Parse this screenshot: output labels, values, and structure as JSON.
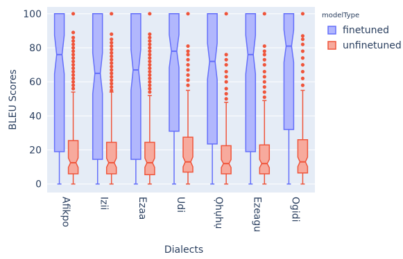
{
  "chart_data": {
    "type": "box",
    "notched": true,
    "xlabel": "Dialects",
    "ylabel": "BLEU Scores",
    "ylim": [
      -5,
      104
    ],
    "y_ticks": [
      0,
      20,
      40,
      60,
      80,
      100
    ],
    "grid": true,
    "legend": {
      "title": "modelType",
      "placement": "top-right"
    },
    "categories": [
      "Afikpo",
      "Izii",
      "Ezaa",
      "Udi",
      "Ọhụhụ",
      "Ezeagu",
      "Ogidi"
    ],
    "series": [
      {
        "name": "finetuned",
        "color": "#636efa",
        "boxes": [
          {
            "min": 0,
            "q1": 19,
            "median": 76,
            "q3": 100,
            "max": 100,
            "outliers": []
          },
          {
            "min": 0,
            "q1": 14.5,
            "median": 65,
            "q3": 100,
            "max": 100,
            "outliers": []
          },
          {
            "min": 0,
            "q1": 14.5,
            "median": 67,
            "q3": 100,
            "max": 100,
            "outliers": []
          },
          {
            "min": 0,
            "q1": 31,
            "median": 78,
            "q3": 100,
            "max": 100,
            "outliers": []
          },
          {
            "min": 0,
            "q1": 23.5,
            "median": 72,
            "q3": 100,
            "max": 100,
            "outliers": []
          },
          {
            "min": 0,
            "q1": 19,
            "median": 76,
            "q3": 100,
            "max": 100,
            "outliers": []
          },
          {
            "min": 0,
            "q1": 32,
            "median": 81,
            "q3": 100,
            "max": 100,
            "outliers": []
          }
        ]
      },
      {
        "name": "unfinetuned",
        "color": "#ef553b",
        "boxes": [
          {
            "min": 0,
            "q1": 6,
            "median": 12.5,
            "q3": 25.5,
            "max": 54,
            "outliers": [
              56,
              58,
              60,
              62,
              64,
              66,
              68,
              70,
              72,
              74,
              76,
              78,
              80,
              82,
              84,
              86,
              89,
              100
            ]
          },
          {
            "min": 0,
            "q1": 6,
            "median": 12.5,
            "q3": 24.5,
            "max": 54,
            "outliers": [
              55,
              57,
              59,
              61,
              63,
              65,
              67,
              69,
              71,
              73,
              75,
              77,
              79,
              81,
              83,
              85,
              88,
              100
            ]
          },
          {
            "min": 0,
            "q1": 5.5,
            "median": 12.5,
            "q3": 24.5,
            "max": 52,
            "outliers": [
              54,
              56,
              58,
              60,
              62,
              64,
              66,
              68,
              70,
              72,
              74,
              76,
              78,
              80,
              82,
              84,
              86,
              88,
              100
            ]
          },
          {
            "min": 0,
            "q1": 7,
            "median": 13,
            "q3": 27.5,
            "max": 55,
            "outliers": [
              58,
              61,
              64,
              67,
              70,
              73,
              76,
              78,
              81,
              100
            ]
          },
          {
            "min": 0,
            "q1": 6,
            "median": 12,
            "q3": 22.5,
            "max": 48,
            "outliers": [
              50,
              53,
              56,
              60,
              63,
              66,
              70,
              73,
              76,
              100
            ]
          },
          {
            "min": 0,
            "q1": 6,
            "median": 12,
            "q3": 23,
            "max": 49,
            "outliers": [
              51,
              54,
              57,
              60,
              63,
              66,
              70,
              73,
              76,
              78,
              81,
              100
            ]
          },
          {
            "min": 0,
            "q1": 6.5,
            "median": 13,
            "q3": 26,
            "max": 55,
            "outliers": [
              58,
              62,
              66,
              70,
              74,
              78,
              82,
              85,
              87,
              100
            ]
          }
        ]
      }
    ]
  }
}
